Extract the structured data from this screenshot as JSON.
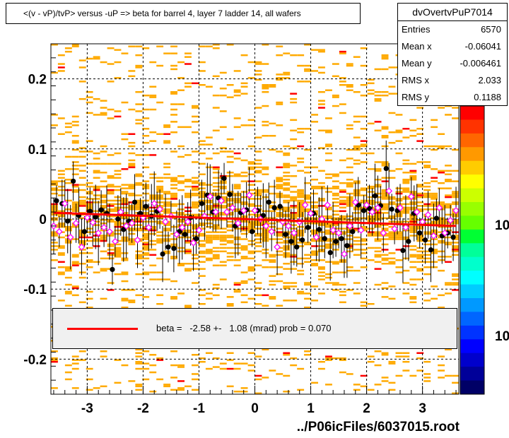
{
  "title": "<(v - vP)/tvP> versus  -uP => beta for barrel 4, layer 7 ladder 14, all wafers",
  "footer": "../P06icFiles/6037015.root",
  "stats": {
    "name": "dvOvertvPuP7014",
    "rows": [
      {
        "label": "Entries",
        "value": "6570"
      },
      {
        "label": "Mean x",
        "value": "-0.06041"
      },
      {
        "label": "Mean y",
        "value": "-0.006461"
      },
      {
        "label": "RMS x",
        "value": "2.033"
      },
      {
        "label": "RMS y",
        "value": "0.1188"
      }
    ]
  },
  "fit": {
    "label": "beta =   -2.58 +-   1.08 (mrad) prob = 0.070",
    "color": "#ff0000",
    "intercept": -0.0006,
    "slope_per_unit": -0.0026
  },
  "colors": {
    "background_cells": "#ffaa00",
    "hot_cells": "#ff0000",
    "profile_points": "#000000",
    "open_markers": "#ff00ff"
  },
  "palette_ticks": [
    "10",
    "10"
  ],
  "chart_data": {
    "type": "scatter",
    "xlim": [
      -3.65,
      3.65
    ],
    "ylim": [
      -0.25,
      0.25
    ],
    "x_ticks": [
      "-3",
      "-2",
      "-1",
      "0",
      "1",
      "2",
      "3"
    ],
    "y_ticks": [
      "0.2",
      "0.1",
      "0",
      "-0.1",
      "-0.2"
    ],
    "grid": true,
    "series": [
      {
        "marker": "filled-circle",
        "points": [
          [
            -3.55,
            0.026
          ],
          [
            -3.45,
            0.022
          ],
          [
            -3.35,
            -0.003
          ],
          [
            -3.25,
            0.054
          ],
          [
            -3.15,
            0.005
          ],
          [
            -3.05,
            -0.018
          ],
          [
            -2.95,
            0.011
          ],
          [
            -2.85,
            0.003
          ],
          [
            -2.75,
            0.013
          ],
          [
            -2.65,
            0.008
          ],
          [
            -2.55,
            -0.072
          ],
          [
            -2.45,
            0.0
          ],
          [
            -2.35,
            -0.015
          ],
          [
            -2.25,
            -0.003
          ],
          [
            -2.15,
            0.024
          ],
          [
            -2.05,
            0.008
          ],
          [
            -1.95,
            0.018
          ],
          [
            -1.85,
            0.004
          ],
          [
            -1.75,
            0.011
          ],
          [
            -1.65,
            -0.05
          ],
          [
            -1.55,
            -0.04
          ],
          [
            -1.45,
            -0.042
          ],
          [
            -1.35,
            -0.018
          ],
          [
            -1.25,
            -0.022
          ],
          [
            -1.15,
            0.002
          ],
          [
            -1.05,
            -0.028
          ],
          [
            -0.95,
            0.022
          ],
          [
            -0.85,
            0.034
          ],
          [
            -0.75,
            0.01
          ],
          [
            -0.65,
            0.03
          ],
          [
            -0.55,
            0.058
          ],
          [
            -0.45,
            0.035
          ],
          [
            -0.35,
            -0.01
          ],
          [
            -0.25,
            0.009
          ],
          [
            -0.15,
            0.013
          ],
          [
            -0.05,
            -0.018
          ],
          [
            0.05,
            0.012
          ],
          [
            0.15,
            0.005
          ],
          [
            0.25,
            0.024
          ],
          [
            0.35,
            0.016
          ],
          [
            0.45,
            0.018
          ],
          [
            0.55,
            -0.022
          ],
          [
            0.65,
            -0.032
          ],
          [
            0.75,
            -0.04
          ],
          [
            0.85,
            -0.03
          ],
          [
            0.95,
            -0.012
          ],
          [
            1.05,
            0.008
          ],
          [
            1.15,
            -0.015
          ],
          [
            1.25,
            -0.028
          ],
          [
            1.35,
            -0.048
          ],
          [
            1.45,
            -0.032
          ],
          [
            1.55,
            -0.028
          ],
          [
            1.65,
            -0.038
          ],
          [
            1.75,
            -0.018
          ],
          [
            1.85,
            0.02
          ],
          [
            1.95,
            0.012
          ],
          [
            2.05,
            0.015
          ],
          [
            2.15,
            0.033
          ],
          [
            2.25,
            0.019
          ],
          [
            2.35,
            0.072
          ],
          [
            2.45,
            0.014
          ],
          [
            2.55,
            0.012
          ],
          [
            2.65,
            -0.045
          ],
          [
            2.75,
            -0.032
          ],
          [
            2.85,
            0.008
          ],
          [
            2.95,
            -0.02
          ],
          [
            3.05,
            -0.03
          ],
          [
            3.15,
            -0.044
          ],
          [
            3.25,
            0.001
          ],
          [
            3.35,
            -0.024
          ],
          [
            3.45,
            -0.02
          ],
          [
            3.55,
            -0.026
          ]
        ]
      },
      {
        "marker": "open-diamond",
        "points": [
          [
            -3.6,
            -0.01
          ],
          [
            -3.5,
            -0.018
          ],
          [
            -3.4,
            0.022
          ],
          [
            -3.3,
            -0.026
          ],
          [
            -3.2,
            -0.006
          ],
          [
            -3.1,
            -0.04
          ],
          [
            -3.0,
            0.002
          ],
          [
            -2.9,
            -0.005
          ],
          [
            -2.8,
            -0.02
          ],
          [
            -2.7,
            -0.012
          ],
          [
            -2.6,
            -0.018
          ],
          [
            -2.5,
            -0.032
          ],
          [
            -2.4,
            0.01
          ],
          [
            -2.3,
            -0.01
          ],
          [
            -2.2,
            -0.006
          ],
          [
            -2.1,
            -0.03
          ],
          [
            -2.0,
            0.002
          ],
          [
            -1.9,
            -0.012
          ],
          [
            -1.8,
            0.022
          ],
          [
            -1.7,
            0.014
          ],
          [
            -1.6,
            -0.004
          ],
          [
            -1.5,
            0.004
          ],
          [
            -1.4,
            -0.022
          ],
          [
            -1.3,
            -0.012
          ],
          [
            -1.2,
            -0.004
          ],
          [
            -1.1,
            -0.034
          ],
          [
            -1.0,
            -0.016
          ],
          [
            -0.9,
            0.004
          ],
          [
            -0.8,
            0.032
          ],
          [
            -0.7,
            0.01
          ],
          [
            -0.6,
            0.026
          ],
          [
            -0.5,
            0.01
          ],
          [
            -0.4,
            0.016
          ],
          [
            -0.3,
            -0.006
          ],
          [
            -0.2,
            0.012
          ],
          [
            -0.1,
            0.034
          ],
          [
            0.0,
            0.012
          ],
          [
            0.1,
            0.0
          ],
          [
            0.2,
            -0.01
          ],
          [
            0.3,
            -0.018
          ],
          [
            0.4,
            -0.04
          ],
          [
            0.5,
            -0.004
          ],
          [
            0.6,
            -0.01
          ],
          [
            0.7,
            -0.02
          ],
          [
            0.8,
            -0.004
          ],
          [
            0.9,
            0.02
          ],
          [
            1.0,
            0.008
          ],
          [
            1.1,
            -0.026
          ],
          [
            1.2,
            0.0
          ],
          [
            1.3,
            0.02
          ],
          [
            1.4,
            -0.016
          ],
          [
            1.5,
            -0.02
          ],
          [
            1.6,
            -0.05
          ],
          [
            1.7,
            -0.01
          ],
          [
            1.8,
            0.024
          ],
          [
            1.9,
            -0.016
          ],
          [
            2.0,
            0.02
          ],
          [
            2.1,
            0.01
          ],
          [
            2.2,
            0.016
          ],
          [
            2.3,
            -0.02
          ],
          [
            2.4,
            0.04
          ],
          [
            2.5,
            -0.014
          ],
          [
            2.6,
            0.016
          ],
          [
            2.7,
            -0.012
          ],
          [
            2.8,
            0.032
          ],
          [
            2.9,
            0.01
          ],
          [
            3.0,
            -0.004
          ],
          [
            3.1,
            0.006
          ],
          [
            3.2,
            -0.024
          ],
          [
            3.3,
            0.016
          ],
          [
            3.4,
            -0.02
          ],
          [
            3.5,
            -0.002
          ],
          [
            3.6,
            0.012
          ]
        ]
      }
    ]
  }
}
